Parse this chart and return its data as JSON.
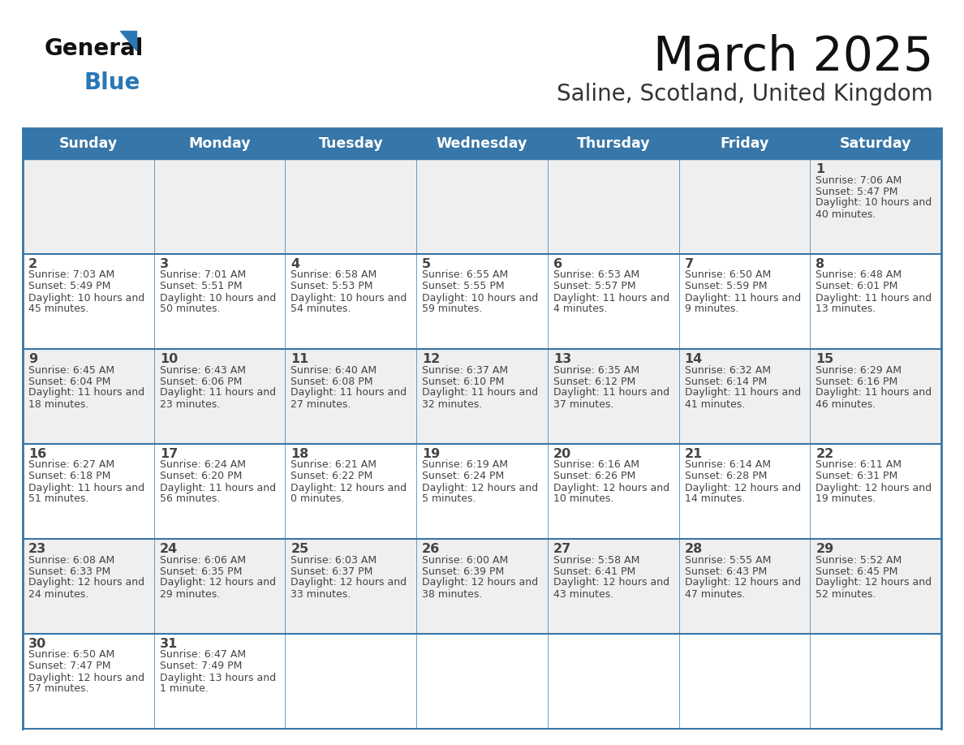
{
  "title": "March 2025",
  "subtitle": "Saline, Scotland, United Kingdom",
  "header_color": "#3776a8",
  "header_text_color": "#ffffff",
  "day_names": [
    "Sunday",
    "Monday",
    "Tuesday",
    "Wednesday",
    "Thursday",
    "Friday",
    "Saturday"
  ],
  "bg_color": "#ffffff",
  "cell_bg_even": "#efefef",
  "cell_bg_odd": "#ffffff",
  "border_color": "#3776a8",
  "text_color": "#444444",
  "days": [
    {
      "day": 1,
      "col": 6,
      "row": 0,
      "sunrise": "7:06 AM",
      "sunset": "5:47 PM",
      "daylight": "10 hours and 40 minutes."
    },
    {
      "day": 2,
      "col": 0,
      "row": 1,
      "sunrise": "7:03 AM",
      "sunset": "5:49 PM",
      "daylight": "10 hours and 45 minutes."
    },
    {
      "day": 3,
      "col": 1,
      "row": 1,
      "sunrise": "7:01 AM",
      "sunset": "5:51 PM",
      "daylight": "10 hours and 50 minutes."
    },
    {
      "day": 4,
      "col": 2,
      "row": 1,
      "sunrise": "6:58 AM",
      "sunset": "5:53 PM",
      "daylight": "10 hours and 54 minutes."
    },
    {
      "day": 5,
      "col": 3,
      "row": 1,
      "sunrise": "6:55 AM",
      "sunset": "5:55 PM",
      "daylight": "10 hours and 59 minutes."
    },
    {
      "day": 6,
      "col": 4,
      "row": 1,
      "sunrise": "6:53 AM",
      "sunset": "5:57 PM",
      "daylight": "11 hours and 4 minutes."
    },
    {
      "day": 7,
      "col": 5,
      "row": 1,
      "sunrise": "6:50 AM",
      "sunset": "5:59 PM",
      "daylight": "11 hours and 9 minutes."
    },
    {
      "day": 8,
      "col": 6,
      "row": 1,
      "sunrise": "6:48 AM",
      "sunset": "6:01 PM",
      "daylight": "11 hours and 13 minutes."
    },
    {
      "day": 9,
      "col": 0,
      "row": 2,
      "sunrise": "6:45 AM",
      "sunset": "6:04 PM",
      "daylight": "11 hours and 18 minutes."
    },
    {
      "day": 10,
      "col": 1,
      "row": 2,
      "sunrise": "6:43 AM",
      "sunset": "6:06 PM",
      "daylight": "11 hours and 23 minutes."
    },
    {
      "day": 11,
      "col": 2,
      "row": 2,
      "sunrise": "6:40 AM",
      "sunset": "6:08 PM",
      "daylight": "11 hours and 27 minutes."
    },
    {
      "day": 12,
      "col": 3,
      "row": 2,
      "sunrise": "6:37 AM",
      "sunset": "6:10 PM",
      "daylight": "11 hours and 32 minutes."
    },
    {
      "day": 13,
      "col": 4,
      "row": 2,
      "sunrise": "6:35 AM",
      "sunset": "6:12 PM",
      "daylight": "11 hours and 37 minutes."
    },
    {
      "day": 14,
      "col": 5,
      "row": 2,
      "sunrise": "6:32 AM",
      "sunset": "6:14 PM",
      "daylight": "11 hours and 41 minutes."
    },
    {
      "day": 15,
      "col": 6,
      "row": 2,
      "sunrise": "6:29 AM",
      "sunset": "6:16 PM",
      "daylight": "11 hours and 46 minutes."
    },
    {
      "day": 16,
      "col": 0,
      "row": 3,
      "sunrise": "6:27 AM",
      "sunset": "6:18 PM",
      "daylight": "11 hours and 51 minutes."
    },
    {
      "day": 17,
      "col": 1,
      "row": 3,
      "sunrise": "6:24 AM",
      "sunset": "6:20 PM",
      "daylight": "11 hours and 56 minutes."
    },
    {
      "day": 18,
      "col": 2,
      "row": 3,
      "sunrise": "6:21 AM",
      "sunset": "6:22 PM",
      "daylight": "12 hours and 0 minutes."
    },
    {
      "day": 19,
      "col": 3,
      "row": 3,
      "sunrise": "6:19 AM",
      "sunset": "6:24 PM",
      "daylight": "12 hours and 5 minutes."
    },
    {
      "day": 20,
      "col": 4,
      "row": 3,
      "sunrise": "6:16 AM",
      "sunset": "6:26 PM",
      "daylight": "12 hours and 10 minutes."
    },
    {
      "day": 21,
      "col": 5,
      "row": 3,
      "sunrise": "6:14 AM",
      "sunset": "6:28 PM",
      "daylight": "12 hours and 14 minutes."
    },
    {
      "day": 22,
      "col": 6,
      "row": 3,
      "sunrise": "6:11 AM",
      "sunset": "6:31 PM",
      "daylight": "12 hours and 19 minutes."
    },
    {
      "day": 23,
      "col": 0,
      "row": 4,
      "sunrise": "6:08 AM",
      "sunset": "6:33 PM",
      "daylight": "12 hours and 24 minutes."
    },
    {
      "day": 24,
      "col": 1,
      "row": 4,
      "sunrise": "6:06 AM",
      "sunset": "6:35 PM",
      "daylight": "12 hours and 29 minutes."
    },
    {
      "day": 25,
      "col": 2,
      "row": 4,
      "sunrise": "6:03 AM",
      "sunset": "6:37 PM",
      "daylight": "12 hours and 33 minutes."
    },
    {
      "day": 26,
      "col": 3,
      "row": 4,
      "sunrise": "6:00 AM",
      "sunset": "6:39 PM",
      "daylight": "12 hours and 38 minutes."
    },
    {
      "day": 27,
      "col": 4,
      "row": 4,
      "sunrise": "5:58 AM",
      "sunset": "6:41 PM",
      "daylight": "12 hours and 43 minutes."
    },
    {
      "day": 28,
      "col": 5,
      "row": 4,
      "sunrise": "5:55 AM",
      "sunset": "6:43 PM",
      "daylight": "12 hours and 47 minutes."
    },
    {
      "day": 29,
      "col": 6,
      "row": 4,
      "sunrise": "5:52 AM",
      "sunset": "6:45 PM",
      "daylight": "12 hours and 52 minutes."
    },
    {
      "day": 30,
      "col": 0,
      "row": 5,
      "sunrise": "6:50 AM",
      "sunset": "7:47 PM",
      "daylight": "12 hours and 57 minutes."
    },
    {
      "day": 31,
      "col": 1,
      "row": 5,
      "sunrise": "6:47 AM",
      "sunset": "7:49 PM",
      "daylight": "13 hours and 1 minute."
    }
  ]
}
